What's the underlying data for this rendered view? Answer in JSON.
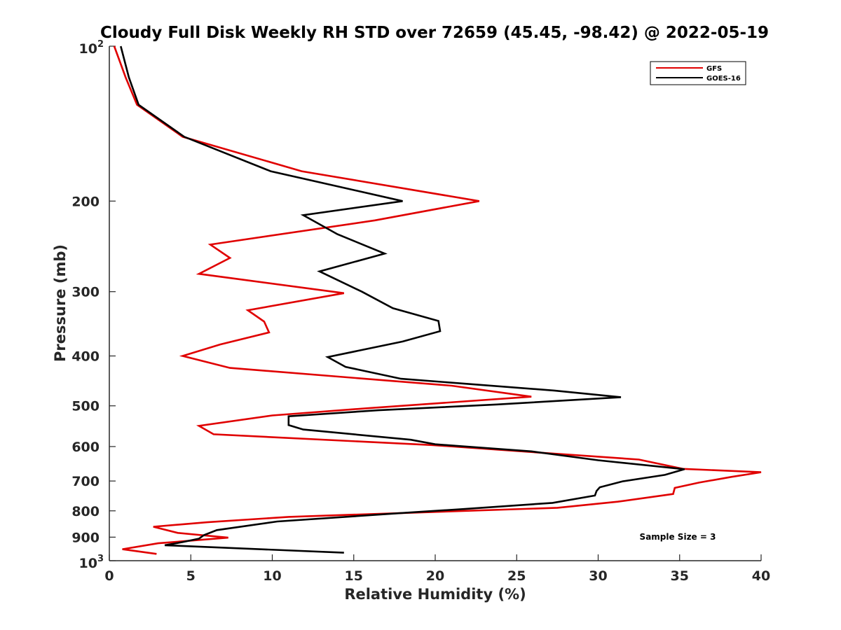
{
  "chart_data": {
    "type": "line",
    "title": "Cloudy Full Disk Weekly RH STD over 72659 (45.45, -98.42) @ 2022-05-19",
    "xlabel": "Relative Humidity (%)",
    "ylabel": "Pressure (mb)",
    "xlim": [
      0,
      40
    ],
    "ylim": [
      100,
      1000
    ],
    "y_scale": "log",
    "y_reversed": true,
    "x_ticks": [
      0,
      5,
      10,
      15,
      20,
      25,
      30,
      35,
      40
    ],
    "y_ticks": [
      {
        "value": 100,
        "base": "10",
        "exp": "2"
      },
      {
        "value": 200,
        "label": "200"
      },
      {
        "value": 300,
        "label": "300"
      },
      {
        "value": 400,
        "label": "400"
      },
      {
        "value": 500,
        "label": "500"
      },
      {
        "value": 600,
        "label": "600"
      },
      {
        "value": 700,
        "label": "700"
      },
      {
        "value": 800,
        "label": "800"
      },
      {
        "value": 900,
        "label": "900"
      },
      {
        "value": 1000,
        "base": "10",
        "exp": "3"
      }
    ],
    "grid": false,
    "legend_position": "top-right",
    "series": [
      {
        "name": "GFS",
        "color": "#e00000",
        "points": [
          [
            0.3,
            100
          ],
          [
            1.0,
            115
          ],
          [
            1.7,
            130
          ],
          [
            4.5,
            150
          ],
          [
            11.8,
            175
          ],
          [
            22.7,
            200
          ],
          [
            16.3,
            218
          ],
          [
            6.2,
            243
          ],
          [
            7.4,
            258
          ],
          [
            5.5,
            277
          ],
          [
            14.4,
            302
          ],
          [
            8.5,
            326
          ],
          [
            9.5,
            343
          ],
          [
            9.8,
            360
          ],
          [
            6.8,
            380
          ],
          [
            4.5,
            400
          ],
          [
            7.4,
            422
          ],
          [
            21.0,
            457
          ],
          [
            25.9,
            480
          ],
          [
            16.0,
            505
          ],
          [
            10.0,
            522
          ],
          [
            5.5,
            547
          ],
          [
            6.4,
            568
          ],
          [
            19.8,
            596
          ],
          [
            32.5,
            636
          ],
          [
            35.2,
            663
          ],
          [
            40.0,
            673
          ],
          [
            38.2,
            687
          ],
          [
            36.2,
            705
          ],
          [
            34.7,
            722
          ],
          [
            34.6,
            742
          ],
          [
            31.2,
            768
          ],
          [
            27.5,
            789
          ],
          [
            11.0,
            822
          ],
          [
            6.0,
            842
          ],
          [
            2.7,
            859
          ],
          [
            4.2,
            883
          ],
          [
            7.3,
            902
          ],
          [
            3.0,
            925
          ],
          [
            0.8,
            950
          ],
          [
            2.9,
            970
          ]
        ]
      },
      {
        "name": "GOES-16",
        "color": "#000000",
        "points": [
          [
            0.7,
            100
          ],
          [
            1.2,
            115
          ],
          [
            1.8,
            130
          ],
          [
            4.6,
            150
          ],
          [
            9.9,
            175
          ],
          [
            18.0,
            200
          ],
          [
            11.9,
            213
          ],
          [
            14.0,
            232
          ],
          [
            16.9,
            253
          ],
          [
            12.9,
            274
          ],
          [
            15.5,
            300
          ],
          [
            17.4,
            323
          ],
          [
            20.2,
            342
          ],
          [
            20.3,
            358
          ],
          [
            18.0,
            375
          ],
          [
            13.4,
            402
          ],
          [
            14.5,
            420
          ],
          [
            17.9,
            443
          ],
          [
            27.3,
            467
          ],
          [
            31.4,
            481
          ],
          [
            23.8,
            497
          ],
          [
            16.5,
            510
          ],
          [
            11.0,
            524
          ],
          [
            11.0,
            545
          ],
          [
            11.9,
            556
          ],
          [
            18.5,
            582
          ],
          [
            20.0,
            594
          ],
          [
            25.9,
            613
          ],
          [
            30.0,
            638
          ],
          [
            35.3,
            664
          ],
          [
            34.1,
            681
          ],
          [
            31.5,
            701
          ],
          [
            30.1,
            720
          ],
          [
            29.9,
            732
          ],
          [
            29.8,
            747
          ],
          [
            27.2,
            772
          ],
          [
            21.6,
            794
          ],
          [
            18.4,
            806
          ],
          [
            10.3,
            839
          ],
          [
            6.6,
            872
          ],
          [
            5.8,
            892
          ],
          [
            5.5,
            906
          ],
          [
            4.5,
            920
          ],
          [
            3.4,
            933
          ],
          [
            14.4,
            965
          ]
        ]
      }
    ],
    "annotations": [
      {
        "text": "Sample Size = 3"
      }
    ]
  }
}
